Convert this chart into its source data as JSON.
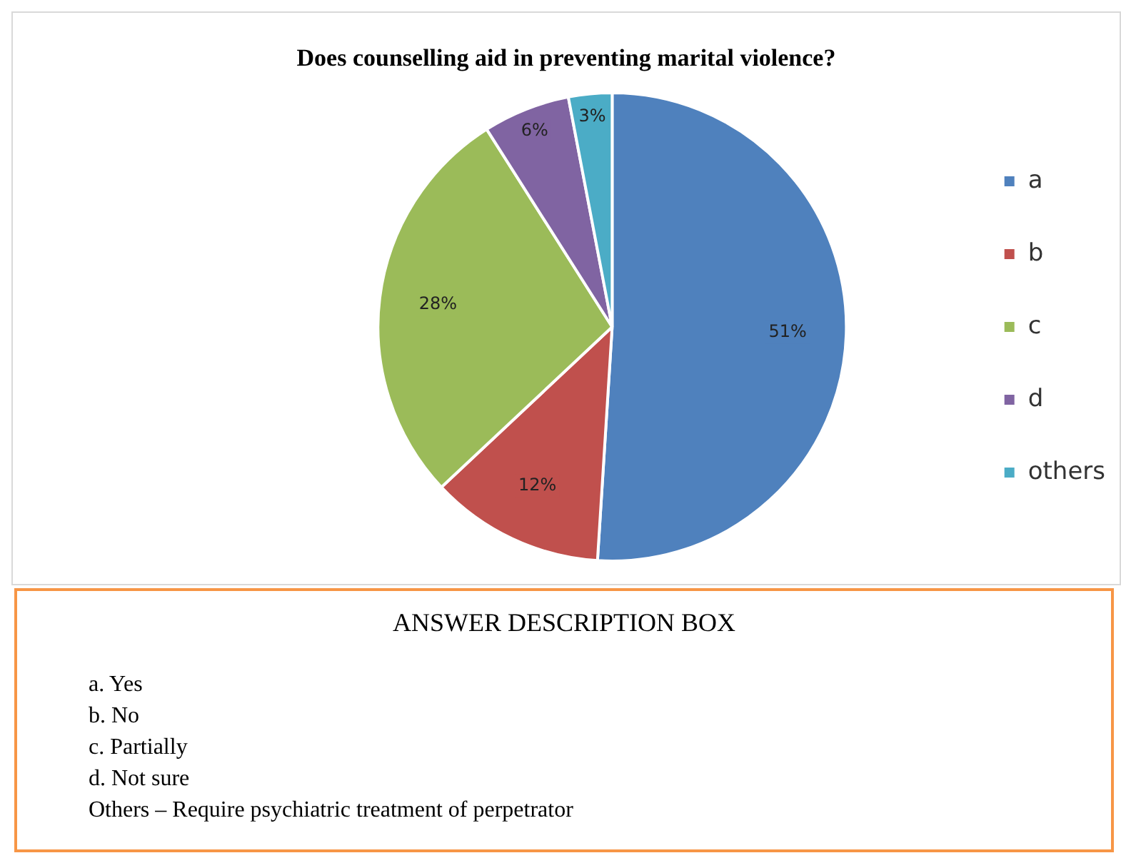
{
  "chart_data": {
    "type": "pie",
    "title": "Does counselling aid in preventing marital violence?",
    "categories": [
      "a",
      "b",
      "c",
      "d",
      "others"
    ],
    "values": [
      51,
      12,
      28,
      6,
      3
    ],
    "colors": [
      "#4f81bd",
      "#c0504d",
      "#9bbb59",
      "#8064a2",
      "#4bacc6"
    ],
    "value_labels": [
      "51%",
      "12%",
      "28%",
      "6%",
      "3%"
    ],
    "legend": "right",
    "annotations": [
      "ANSWER DESCRIPTION BOX",
      "a.  Yes",
      "b.  No",
      "c.  Partially",
      "d.  Not sure",
      "Others – Require psychiatric treatment of perpetrator"
    ]
  }
}
